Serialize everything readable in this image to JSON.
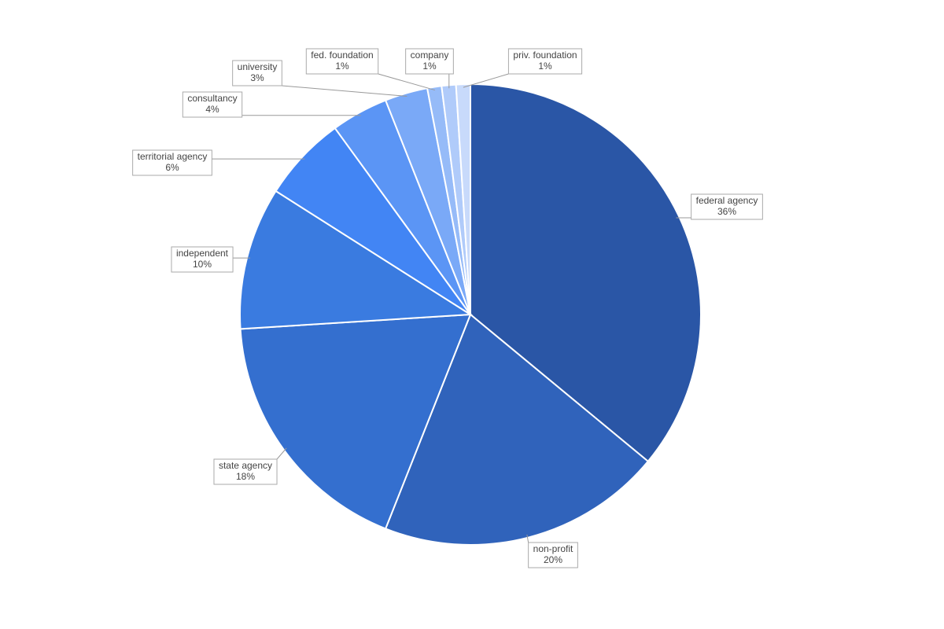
{
  "chart_data": {
    "type": "pie",
    "categories": [
      "federal agency",
      "non-profit",
      "state agency",
      "independent",
      "territorial agency",
      "consultancy",
      "university",
      "fed. foundation",
      "company",
      "priv. foundation"
    ],
    "values": [
      36,
      20,
      18,
      10,
      6,
      4,
      3,
      1,
      1,
      1
    ],
    "value_labels": [
      "36%",
      "20%",
      "18%",
      "10%",
      "6%",
      "4%",
      "3%",
      "1%",
      "1%",
      "1%"
    ],
    "colors": [
      "#2a56a6",
      "#3063bb",
      "#346fcf",
      "#3a7be0",
      "#4285f4",
      "#5b95f5",
      "#7aa9f7",
      "#96bbf8",
      "#b0cbfa",
      "#c8dafb"
    ]
  }
}
